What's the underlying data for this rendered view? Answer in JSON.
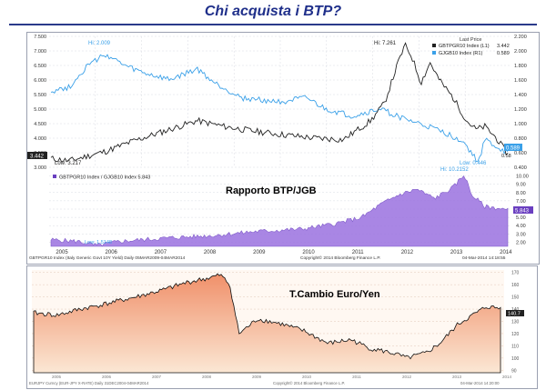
{
  "slide": {
    "title": "Chi acquista i BTP?"
  },
  "top_chart": {
    "legend_header": "Last Price",
    "legend": [
      {
        "name": "GBTPGR10 Index (L1)",
        "value": "3.442",
        "color": "#222222"
      },
      {
        "name": "GJGB10 Index (R1)",
        "value": "0.589",
        "color": "#3aa0e8"
      }
    ],
    "annotations": {
      "hi_btp": "Hi: 7.261",
      "hi_jgb": "Hi: 2.009",
      "low_btp": "Low: 3.217",
      "low_jgb": "Low: 0.446"
    },
    "left_ticks": [
      "7.500",
      "7.000",
      "6.500",
      "6.000",
      "5.500",
      "5.000",
      "4.500",
      "4.000",
      "3.500",
      "3.000"
    ],
    "right_ticks": [
      "2.200",
      "2.000",
      "1.800",
      "1.600",
      "1.400",
      "1.200",
      "1.000",
      "0.800",
      "0.600",
      "0.400"
    ],
    "last_left": "3.442",
    "last_right": "0.589",
    "last_right2": "0.58"
  },
  "ratio_chart": {
    "legend": "GBTPGR10 Index / GJGB10 Index 5.843",
    "label": "Rapporto BTP/JGB",
    "hi": "Hi: 10.2152",
    "low": "Low: 1.5148",
    "ticks": [
      "10.00",
      "9.00",
      "8.00",
      "7.00",
      "6.00",
      "5.00",
      "4.00",
      "3.00",
      "2.00"
    ],
    "last_value": "5.843",
    "x_labels": [
      "2005",
      "2006",
      "2007",
      "2008",
      "2009",
      "2010",
      "2011",
      "2012",
      "2013",
      "2014"
    ],
    "footer_left": "GBTPGR10 Index (Italy Generic Govt 10Y Yield) Daily 05MAR2009-04MAR2014",
    "footer_mid": "Copyright© 2014 Bloomberg Finance L.P.",
    "footer_right": "04-Mar-2014 14:18:55",
    "fill_color": "#9b72e0"
  },
  "fx_chart": {
    "label": "T.Cambio Euro/Yen",
    "ticks": [
      "170",
      "160",
      "150",
      "140",
      "130",
      "120",
      "110",
      "100",
      "90"
    ],
    "last_value": "140.7",
    "x_labels": [
      "2005",
      "2006",
      "2007",
      "2008",
      "2009",
      "2010",
      "2011",
      "2012",
      "2013",
      "2014"
    ],
    "footer_left": "EURJPY Curncy (EUR-JPY X-RATE) Daily 31DEC2004-04MAR2014",
    "footer_mid": "Copyright© 2014 Bloomberg Finance L.P.",
    "footer_right": "04-Mar-2014 14:20:00",
    "fill_top": "#f0906a",
    "fill_bottom": "#fbe7d4"
  },
  "chart_data": [
    {
      "type": "line",
      "title": "",
      "xlabel": "",
      "ylabel": "",
      "ylim": [
        3.0,
        7.5
      ],
      "y2lim": [
        0.4,
        2.2
      ],
      "x": [
        "2005",
        "2006",
        "2007",
        "2008",
        "2009",
        "2010",
        "2011",
        "2012",
        "2013",
        "2014"
      ],
      "grid": true,
      "legend_position": "top-right",
      "series": [
        {
          "name": "GBTPGR10 Index",
          "axis": "left",
          "values": [
            3.3,
            3.9,
            4.6,
            4.4,
            4.3,
            4.0,
            4.9,
            5.5,
            4.1,
            3.44
          ]
        },
        {
          "name": "GJGB10 Index",
          "axis": "right",
          "values": [
            1.4,
            1.9,
            1.8,
            1.55,
            1.35,
            1.25,
            1.05,
            0.95,
            0.65,
            0.589
          ]
        }
      ]
    },
    {
      "type": "area",
      "title": "Rapporto BTP/JGB",
      "xlabel": "",
      "ylabel": "",
      "ylim": [
        1.5,
        10.5
      ],
      "x": [
        "2005",
        "2006",
        "2007",
        "2008",
        "2009",
        "2010",
        "2011",
        "2012",
        "2013",
        "2014"
      ],
      "grid": true,
      "legend_position": "top-left",
      "series": [
        {
          "name": "GBTPGR10 Index / GJGB10 Index",
          "values": [
            2.3,
            2.2,
            2.6,
            2.8,
            3.3,
            3.7,
            5.0,
            6.3,
            8.0,
            5.843
          ]
        }
      ]
    },
    {
      "type": "area",
      "title": "T.Cambio Euro/Yen",
      "xlabel": "",
      "ylabel": "",
      "ylim": [
        88,
        172
      ],
      "x": [
        "2005",
        "2006",
        "2007",
        "2008",
        "2009",
        "2010",
        "2011",
        "2012",
        "2013",
        "2014"
      ],
      "grid": true,
      "series": [
        {
          "name": "",
          "values": [
            137,
            142,
            150,
            163,
            128,
            125,
            113,
            106,
            125,
            140.7
          ]
        }
      ]
    }
  ]
}
